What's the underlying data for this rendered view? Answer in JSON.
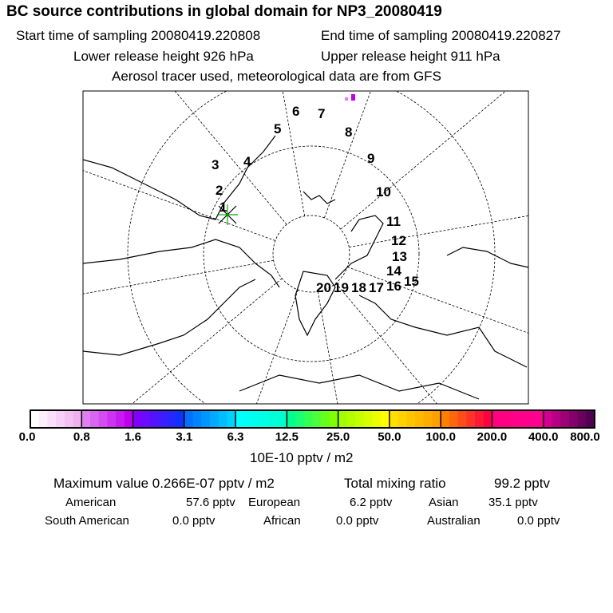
{
  "title": "BC  source contributions in global domain for NP3_20080419",
  "start_label": "Start time of sampling 20080419.220808",
  "end_label": "End time of sampling 20080419.220827",
  "lower_label": "Lower release height  926 hPa",
  "upper_label": "Upper release height  911 hPa",
  "tracer_label": "Aerosol tracer used, meteorological data are from GFS",
  "map": {
    "track_labels": [
      "1",
      "2",
      "3",
      "4",
      "5",
      "6",
      "7",
      "8",
      "9",
      "10",
      "11",
      "12",
      "13",
      "14",
      "15",
      "16",
      "17",
      "18",
      "19",
      "20"
    ]
  },
  "colorbar": {
    "ticks": [
      "0.0",
      "0.8",
      "1.6",
      "3.1",
      "6.3",
      "12.5",
      "25.0",
      "50.0",
      "100.0",
      "200.0",
      "400.0",
      "800.0"
    ],
    "unit": "10E-10 pptv / m2",
    "segments": [
      [
        "#ffffff",
        "#f0b0f0"
      ],
      [
        "#e080f0",
        "#c000f0"
      ],
      [
        "#8000ff",
        "#1030ff"
      ],
      [
        "#0070ff",
        "#00d0ff"
      ],
      [
        "#00ffff",
        "#00ffd0"
      ],
      [
        "#00ff90",
        "#80ff00"
      ],
      [
        "#a0ff00",
        "#ffff00"
      ],
      [
        "#ffe000",
        "#ffa000"
      ],
      [
        "#ff8000",
        "#ff0040"
      ],
      [
        "#ff0080",
        "#ff0090"
      ],
      [
        "#d00090",
        "#500050"
      ]
    ]
  },
  "stats": {
    "max_label": "Maximum value  0.266E-07 pptv / m2",
    "total_label": "Total mixing ratio",
    "total_value": "99.2 pptv",
    "regions": [
      {
        "name": "American",
        "value": "57.6 pptv"
      },
      {
        "name": "European",
        "value": "6.2 pptv"
      },
      {
        "name": "Asian",
        "value": "35.1 pptv"
      },
      {
        "name": "South American",
        "value": "0.0 pptv"
      },
      {
        "name": "African",
        "value": "0.0 pptv"
      },
      {
        "name": "Australian",
        "value": "0.0 pptv"
      }
    ]
  }
}
